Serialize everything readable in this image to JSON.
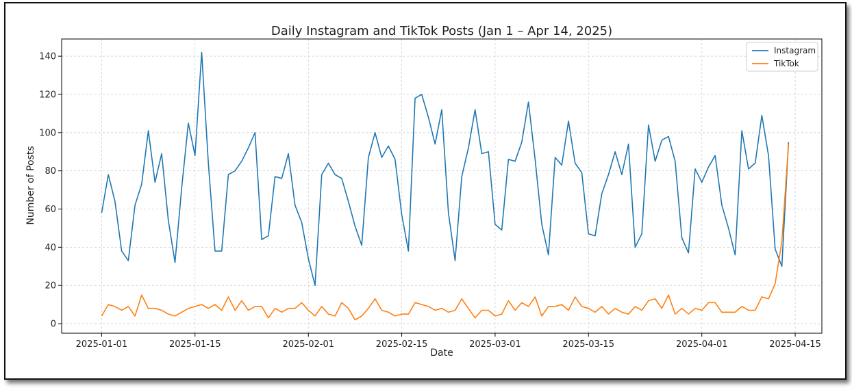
{
  "chart_data": {
    "type": "line",
    "title": "Daily Instagram and TikTok Posts (Jan 1 – Apr 14, 2025)",
    "xlabel": "Date",
    "ylabel": "Number of Posts",
    "x_start": "2025-01-01",
    "x_end": "2025-04-14",
    "xlim": [
      "2024-12-26",
      "2025-04-19"
    ],
    "ylim": [
      -5,
      149
    ],
    "x_ticks": [
      "2025-01-01",
      "2025-01-15",
      "2025-02-01",
      "2025-02-15",
      "2025-03-01",
      "2025-03-15",
      "2025-04-01",
      "2025-04-15"
    ],
    "y_ticks": [
      0,
      20,
      40,
      60,
      80,
      100,
      120,
      140
    ],
    "grid": true,
    "legend": "top-right",
    "series": [
      {
        "name": "Instagram",
        "color": "#1f77b4",
        "values": [
          58,
          78,
          64,
          38,
          33,
          62,
          73,
          101,
          74,
          89,
          54,
          32,
          71,
          105,
          88,
          142,
          84,
          38,
          38,
          78,
          80,
          85,
          92,
          100,
          44,
          46,
          77,
          76,
          89,
          62,
          53,
          34,
          20,
          78,
          84,
          78,
          76,
          64,
          51,
          41,
          87,
          100,
          87,
          93,
          86,
          57,
          38,
          118,
          120,
          108,
          94,
          112,
          58,
          33,
          77,
          92,
          112,
          89,
          90,
          52,
          49,
          86,
          85,
          95,
          116,
          86,
          52,
          36,
          87,
          83,
          106,
          84,
          79,
          47,
          46,
          68,
          78,
          90,
          78,
          94,
          40,
          47,
          104,
          85,
          96,
          98,
          85,
          45,
          37,
          81,
          74,
          82,
          88,
          62,
          50,
          36,
          101,
          81,
          84,
          109,
          88,
          39,
          30,
          95
        ]
      },
      {
        "name": "TikTok",
        "color": "#ff7f0e",
        "values": [
          4,
          10,
          9,
          7,
          9,
          4,
          15,
          8,
          8,
          7,
          5,
          4,
          6,
          8,
          9,
          10,
          8,
          10,
          7,
          14,
          7,
          12,
          7,
          9,
          9,
          3,
          8,
          6,
          8,
          8,
          11,
          7,
          4,
          9,
          5,
          4,
          11,
          8,
          2,
          4,
          8,
          13,
          7,
          6,
          4,
          5,
          5,
          11,
          10,
          9,
          7,
          8,
          6,
          7,
          13,
          8,
          3,
          7,
          7,
          4,
          5,
          12,
          7,
          11,
          9,
          14,
          4,
          9,
          9,
          10,
          7,
          14,
          9,
          8,
          6,
          9,
          5,
          8,
          6,
          5,
          9,
          7,
          12,
          13,
          8,
          15,
          5,
          8,
          5,
          8,
          7,
          11,
          11,
          6,
          6,
          6,
          9,
          7,
          7,
          14,
          13,
          21,
          43,
          94
        ]
      }
    ]
  }
}
